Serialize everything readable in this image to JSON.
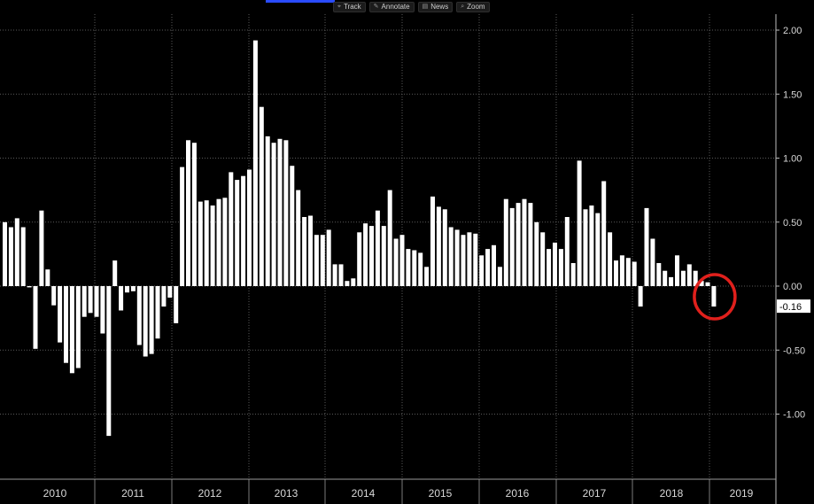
{
  "toolbar": {
    "items": [
      {
        "label": "Track",
        "icon": "crosshair-icon"
      },
      {
        "label": "Annotate",
        "icon": "pencil-icon"
      },
      {
        "label": "News",
        "icon": "news-icon"
      },
      {
        "label": "Zoom",
        "icon": "zoom-icon"
      }
    ]
  },
  "colors": {
    "background": "#000000",
    "bars": "#ffffff",
    "grid": "#5a5a5a",
    "highlight_circle": "#e0201c",
    "last_value_label_bg": "#ffffff",
    "last_value_label_text": "#000000",
    "toolbar_accent": "#2a4cff"
  },
  "chart_data": {
    "type": "bar",
    "title": "",
    "xlabel": "",
    "ylabel": "",
    "ylim": [
      -1.3,
      2.2
    ],
    "yticks": [
      "2.00",
      "1.50",
      "1.00",
      "0.50",
      "0.00",
      "-0.50",
      "-1.00"
    ],
    "year_labels": [
      "2010",
      "2011",
      "2012",
      "2013",
      "2014",
      "2015",
      "2016",
      "2017",
      "2018",
      "2019"
    ],
    "grid": true,
    "y_axis_position": "right",
    "series": [
      {
        "values": [
          0.5,
          0.46,
          0.53,
          0.46,
          -0.01,
          -0.49,
          0.59,
          0.13,
          -0.15,
          -0.44,
          -0.6,
          -0.68,
          -0.64,
          -0.24,
          -0.21,
          -0.24,
          -0.37,
          -1.17,
          0.2,
          -0.19,
          -0.05,
          -0.04,
          -0.46,
          -0.55,
          -0.53,
          -0.41,
          -0.16,
          -0.09,
          -0.29,
          0.93,
          1.14,
          1.12,
          0.66,
          0.67,
          0.63,
          0.68,
          0.69,
          0.89,
          0.83,
          0.86,
          0.91,
          1.92,
          1.4,
          1.17,
          1.12,
          1.15,
          1.14,
          0.94,
          0.75,
          0.54,
          0.55,
          0.4,
          0.4,
          0.44,
          0.17,
          0.17,
          0.04,
          0.06,
          0.42,
          0.49,
          0.47,
          0.59,
          0.47,
          0.75,
          0.37,
          0.4,
          0.29,
          0.28,
          0.26,
          0.15,
          0.7,
          0.62,
          0.6,
          0.46,
          0.44,
          0.4,
          0.42,
          0.41,
          0.24,
          0.29,
          0.32,
          0.15,
          0.68,
          0.61,
          0.65,
          0.68,
          0.65,
          0.5,
          0.42,
          0.29,
          0.34,
          0.29,
          0.54,
          0.18,
          0.98,
          0.6,
          0.63,
          0.57,
          0.82,
          0.42,
          0.2,
          0.24,
          0.22,
          0.19,
          -0.16,
          0.61,
          0.37,
          0.18,
          0.12,
          0.07,
          0.24,
          0.12,
          0.17,
          0.12,
          0.04,
          0.03,
          -0.16
        ]
      }
    ],
    "last_value_label": "-0.16",
    "annotations": [
      {
        "type": "circle",
        "target": "last-bar",
        "color": "#e0201c"
      }
    ]
  }
}
